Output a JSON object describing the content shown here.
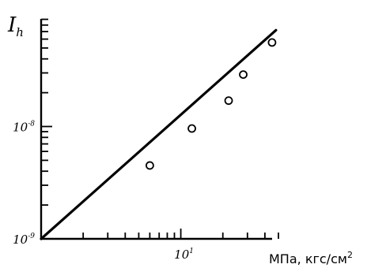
{
  "chart_data": {
    "type": "scatter",
    "title": "",
    "ylabel": "I",
    "ylabel_sub": "h",
    "xlabel": "МПа, кгс/см",
    "xlabel_sup": "2",
    "x_scale": "log",
    "y_scale": "log",
    "xlim": [
      1,
      50
    ],
    "ylim": [
      1e-09,
      1e-07
    ],
    "grid": false,
    "x_major_ticks": [
      {
        "value": 10,
        "base": "10",
        "exp": "1"
      }
    ],
    "y_major_ticks": [
      {
        "value": 1e-09,
        "base": "10",
        "exp": "-9"
      },
      {
        "value": 1e-08,
        "base": "10",
        "exp": "-8"
      }
    ],
    "points": [
      {
        "x": 6,
        "y": 4.5e-09
      },
      {
        "x": 12,
        "y": 9.6e-09
      },
      {
        "x": 22,
        "y": 1.7e-08
      },
      {
        "x": 28,
        "y": 2.9e-08
      },
      {
        "x": 45,
        "y": 5.6e-08
      }
    ],
    "fit_line": {
      "x": [
        1,
        48
      ],
      "y": [
        1e-09,
        7.2e-08
      ]
    }
  }
}
